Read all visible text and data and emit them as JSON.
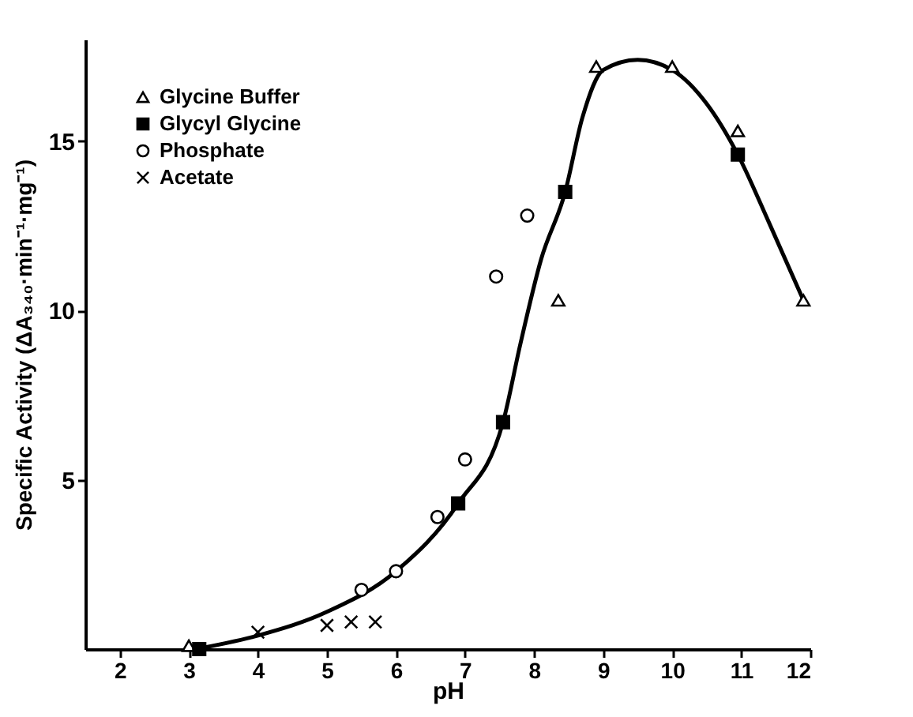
{
  "chart_data": {
    "type": "scatter",
    "xlabel": "pH",
    "ylabel": "Specific Activity (ΔA₃₄₀·min⁻¹·mg⁻¹)",
    "xlim": [
      1.5,
      12
    ],
    "ylim": [
      0,
      18
    ],
    "xticks": [
      2,
      3,
      4,
      5,
      6,
      7,
      8,
      9,
      10,
      11,
      12
    ],
    "yticks": [
      5,
      10,
      15
    ],
    "grid": false,
    "legend": "top left",
    "series": [
      {
        "name": "Glycine Buffer",
        "color": "#000000",
        "marker": "triangle",
        "x": [
          3,
          8.35,
          8.9,
          10,
          10.95,
          11.9
        ],
        "values": [
          0.1,
          10.3,
          17.2,
          17.2,
          15.3,
          10.3
        ]
      },
      {
        "name": "Glycyl Glycine",
        "color": "#000000",
        "marker": "square",
        "x": [
          3.15,
          6.9,
          7.55,
          8.45,
          10.95
        ],
        "values": [
          0,
          4.3,
          6.7,
          13.5,
          14.6
        ]
      },
      {
        "name": "Phosphate",
        "color": "#000000",
        "marker": "circle",
        "x": [
          5.5,
          6.0,
          6.6,
          7.0,
          7.45,
          7.9
        ],
        "values": [
          1.75,
          2.3,
          3.9,
          5.6,
          11.0,
          12.8
        ]
      },
      {
        "name": "Acetate",
        "color": "#000000",
        "marker": "cross",
        "x": [
          4.0,
          5.0,
          5.35,
          5.7
        ],
        "values": [
          0.5,
          0.7,
          0.8,
          0.8
        ]
      },
      {
        "type": "line",
        "color": "#000000",
        "marker": "none",
        "line_style": "solid",
        "x": [
          3.1,
          4,
          5,
          6,
          6.9,
          7.55,
          7.8,
          8.1,
          8.45,
          8.7,
          9,
          9.5,
          10,
          10.5,
          10.95,
          11.4,
          11.9
        ],
        "values": [
          0,
          0.4,
          1.1,
          2.3,
          4.3,
          6.7,
          9,
          11.5,
          13.5,
          15.7,
          17.1,
          17.4,
          17.1,
          16.1,
          14.6,
          12.6,
          10.3
        ]
      }
    ]
  }
}
